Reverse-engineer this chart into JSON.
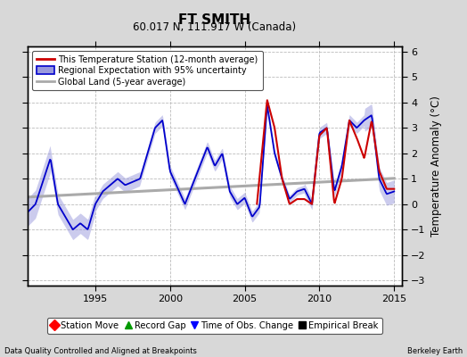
{
  "title": "FT SMITH",
  "subtitle": "60.017 N, 111.917 W (Canada)",
  "ylabel": "Temperature Anomaly (°C)",
  "footer_left": "Data Quality Controlled and Aligned at Breakpoints",
  "footer_right": "Berkeley Earth",
  "xlim": [
    1990.5,
    2015.5
  ],
  "ylim": [
    -3.2,
    6.2
  ],
  "yticks": [
    -3,
    -2,
    -1,
    0,
    1,
    2,
    3,
    4,
    5,
    6
  ],
  "xticks": [
    1995,
    2000,
    2005,
    2010,
    2015
  ],
  "bg_color": "#d8d8d8",
  "plot_bg_color": "#ffffff",
  "grid_color": "#bbbbbb",
  "red_line_color": "#cc0000",
  "blue_line_color": "#0000cc",
  "band_color": "#9999dd",
  "gray_line_color": "#aaaaaa",
  "legend1_entries": [
    "This Temperature Station (12-month average)",
    "Regional Expectation with 95% uncertainty",
    "Global Land (5-year average)"
  ],
  "legend2_entries": [
    "Station Move",
    "Record Gap",
    "Time of Obs. Change",
    "Empirical Break"
  ]
}
